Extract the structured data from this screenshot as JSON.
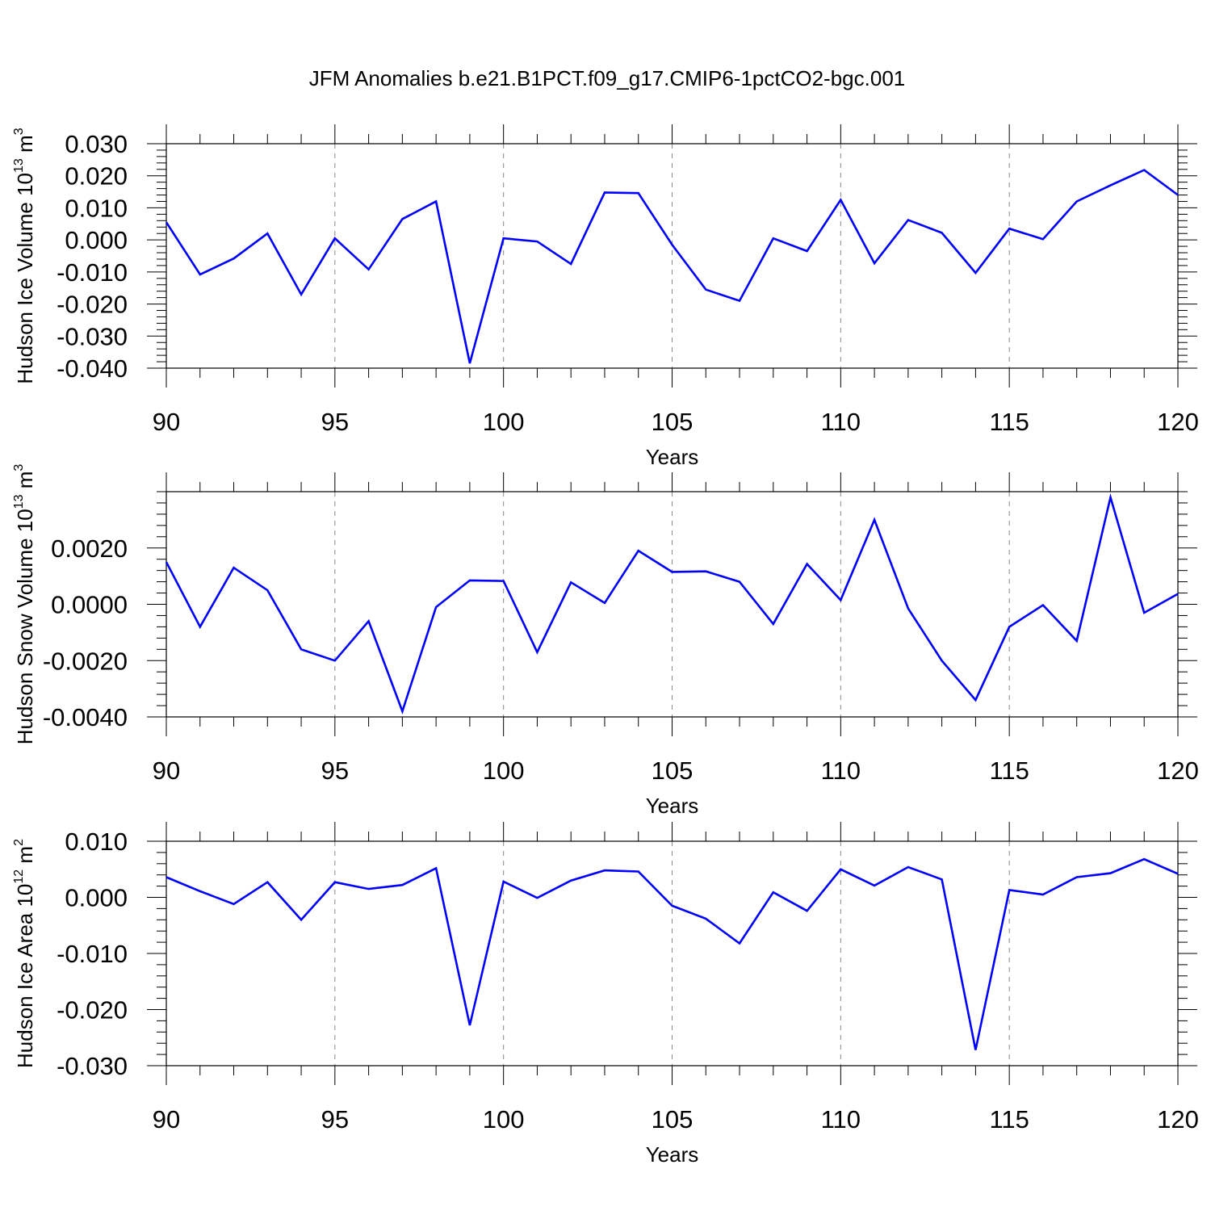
{
  "figure": {
    "title": "JFM Anomalies b.e21.B1PCT.f09_g17.CMIP6-1pctCO2-bgc.001"
  },
  "colors": {
    "line": "#0000ff",
    "axis": "#000000",
    "grid": "#888888"
  },
  "chart_data": [
    {
      "type": "line",
      "xlabel": "Years",
      "ylabel": {
        "prefix": "Hudson Ice Volume 10",
        "exp": "13",
        "unit": " m",
        "unit_exp": "3"
      },
      "xlim": [
        90,
        120
      ],
      "ylim": [
        -0.04,
        0.03
      ],
      "xticks": [
        "90",
        "95",
        "100",
        "105",
        "110",
        "115",
        "120"
      ],
      "yticks": [
        "-0.040",
        "-0.030",
        "-0.020",
        "-0.010",
        "0.000",
        "0.010",
        "0.020",
        "0.030"
      ],
      "grid": "dashed vertical at major x ticks",
      "x": [
        90,
        91,
        92,
        93,
        94,
        95,
        96,
        97,
        98,
        99,
        100,
        101,
        102,
        103,
        104,
        105,
        106,
        107,
        108,
        109,
        110,
        111,
        112,
        113,
        114,
        115,
        116,
        117,
        118,
        119,
        120
      ],
      "values": [
        0.0055,
        -0.0108,
        -0.0058,
        0.002,
        -0.017,
        0.0005,
        -0.0092,
        0.0065,
        0.012,
        -0.0385,
        0.0005,
        -0.0005,
        -0.0075,
        0.0148,
        0.0146,
        -0.0015,
        -0.0155,
        -0.019,
        0.0005,
        -0.0035,
        0.0125,
        -0.0073,
        0.0062,
        0.0022,
        -0.0103,
        0.0035,
        0.0002,
        0.012,
        0.017,
        0.0218,
        0.014
      ]
    },
    {
      "type": "line",
      "xlabel": "Years",
      "ylabel": {
        "prefix": "Hudson Snow Volume 10",
        "exp": "13",
        "unit": " m",
        "unit_exp": "3"
      },
      "xlim": [
        90,
        120
      ],
      "ylim": [
        -0.004,
        0.004
      ],
      "xticks": [
        "90",
        "95",
        "100",
        "105",
        "110",
        "115",
        "120"
      ],
      "yticks": [
        "-0.0040",
        "-0.0020",
        "0.0000",
        "0.0020"
      ],
      "grid": "dashed vertical at major x ticks",
      "x": [
        90,
        91,
        92,
        93,
        94,
        95,
        96,
        97,
        98,
        99,
        100,
        101,
        102,
        103,
        104,
        105,
        106,
        107,
        108,
        109,
        110,
        111,
        112,
        113,
        114,
        115,
        116,
        117,
        118,
        119,
        120
      ],
      "values": [
        0.0015,
        -0.0008,
        0.0013,
        0.0005,
        -0.0016,
        -0.002,
        -0.0006,
        -0.0038,
        -0.0001,
        0.00085,
        0.00083,
        -0.0017,
        0.00078,
        5e-05,
        0.0019,
        0.00115,
        0.00117,
        0.0008,
        -0.0007,
        0.00143,
        0.00015,
        0.003,
        -0.00015,
        -0.002,
        -0.0034,
        -0.0008,
        -3e-05,
        -0.0013,
        0.0038,
        -0.0003,
        0.00037
      ]
    },
    {
      "type": "line",
      "xlabel": "Years",
      "ylabel": {
        "prefix": "Hudson Ice Area 10",
        "exp": "12",
        "unit": " m",
        "unit_exp": "2"
      },
      "xlim": [
        90,
        120
      ],
      "ylim": [
        -0.03,
        0.01
      ],
      "xticks": [
        "90",
        "95",
        "100",
        "105",
        "110",
        "115",
        "120"
      ],
      "yticks": [
        "-0.030",
        "-0.020",
        "-0.010",
        "0.000",
        "0.010"
      ],
      "grid": "dashed vertical at major x ticks",
      "x": [
        90,
        91,
        92,
        93,
        94,
        95,
        96,
        97,
        98,
        99,
        100,
        101,
        102,
        103,
        104,
        105,
        106,
        107,
        108,
        109,
        110,
        111,
        112,
        113,
        114,
        115,
        116,
        117,
        118,
        119,
        120
      ],
      "values": [
        0.0036,
        0.0011,
        -0.0012,
        0.0027,
        -0.004,
        0.0027,
        0.0015,
        0.0022,
        0.0052,
        -0.0228,
        0.0028,
        -0.0001,
        0.003,
        0.0048,
        0.0046,
        -0.0015,
        -0.0038,
        -0.0082,
        0.0009,
        -0.0024,
        0.005,
        0.0021,
        0.0054,
        0.0032,
        -0.0272,
        0.0013,
        0.0005,
        0.0036,
        0.0043,
        0.0068,
        0.0042
      ]
    }
  ]
}
